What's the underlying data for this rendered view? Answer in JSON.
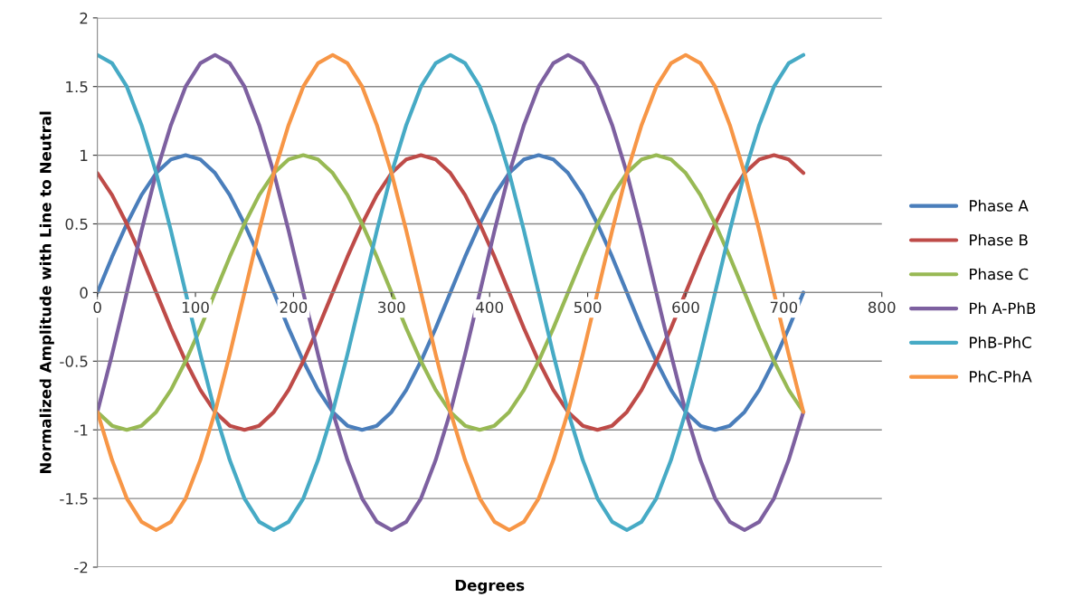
{
  "chart_data": {
    "type": "line",
    "xlabel": "Degrees",
    "ylabel": "Normalized Amplitude with Line to Neutral",
    "x": [
      0,
      15,
      30,
      45,
      60,
      75,
      90,
      105,
      120,
      135,
      150,
      165,
      180,
      195,
      210,
      225,
      240,
      255,
      270,
      285,
      300,
      315,
      330,
      345,
      360,
      375,
      390,
      405,
      420,
      435,
      450,
      465,
      480,
      495,
      510,
      525,
      540,
      555,
      570,
      585,
      600,
      615,
      630,
      645,
      660,
      675,
      690,
      705,
      720
    ],
    "xlim": [
      0,
      800
    ],
    "xticks": [
      0,
      100,
      200,
      300,
      400,
      500,
      600,
      700,
      800
    ],
    "ylim": [
      -2,
      2
    ],
    "yticks": [
      -2,
      -1.5,
      -1,
      -0.5,
      0,
      0.5,
      1,
      1.5,
      2
    ],
    "grid": "y",
    "legend": "right",
    "marker": "none",
    "line_style": "solid",
    "series": [
      {
        "name": "Phase A",
        "color": "#4a7ebb",
        "values": [
          0,
          0.26,
          0.5,
          0.71,
          0.87,
          0.97,
          1,
          0.97,
          0.87,
          0.71,
          0.5,
          0.26,
          0,
          -0.26,
          -0.5,
          -0.71,
          -0.87,
          -0.97,
          -1,
          -0.97,
          -0.87,
          -0.71,
          -0.5,
          -0.26,
          0,
          0.26,
          0.5,
          0.71,
          0.87,
          0.97,
          1,
          0.97,
          0.87,
          0.71,
          0.5,
          0.26,
          0,
          -0.26,
          -0.5,
          -0.71,
          -0.87,
          -0.97,
          -1,
          -0.97,
          -0.87,
          -0.71,
          -0.5,
          -0.26,
          0
        ]
      },
      {
        "name": "Phase B",
        "color": "#be4b48",
        "values": [
          0.87,
          0.71,
          0.5,
          0.26,
          0,
          -0.26,
          -0.5,
          -0.71,
          -0.87,
          -0.97,
          -1,
          -0.97,
          -0.87,
          -0.71,
          -0.5,
          -0.26,
          0,
          0.26,
          0.5,
          0.71,
          0.87,
          0.97,
          1,
          0.97,
          0.87,
          0.71,
          0.5,
          0.26,
          0,
          -0.26,
          -0.5,
          -0.71,
          -0.87,
          -0.97,
          -1,
          -0.97,
          -0.87,
          -0.71,
          -0.5,
          -0.26,
          0,
          0.26,
          0.5,
          0.71,
          0.87,
          0.97,
          1,
          0.97,
          0.87
        ]
      },
      {
        "name": "Phase C",
        "color": "#98b954",
        "values": [
          -0.87,
          -0.97,
          -1,
          -0.97,
          -0.87,
          -0.71,
          -0.5,
          -0.26,
          0,
          0.26,
          0.5,
          0.71,
          0.87,
          0.97,
          1,
          0.97,
          0.87,
          0.71,
          0.5,
          0.26,
          0,
          -0.26,
          -0.5,
          -0.71,
          -0.87,
          -0.97,
          -1,
          -0.97,
          -0.87,
          -0.71,
          -0.5,
          -0.26,
          0,
          0.26,
          0.5,
          0.71,
          0.87,
          0.97,
          1,
          0.97,
          0.87,
          0.71,
          0.5,
          0.26,
          0,
          -0.26,
          -0.5,
          -0.71,
          -0.87
        ]
      },
      {
        "name": "Ph A-PhB",
        "color": "#7d60a0",
        "values": [
          -0.87,
          -0.45,
          0,
          0.45,
          0.87,
          1.22,
          1.5,
          1.67,
          1.73,
          1.67,
          1.5,
          1.22,
          0.87,
          0.45,
          0,
          -0.45,
          -0.87,
          -1.22,
          -1.5,
          -1.67,
          -1.73,
          -1.67,
          -1.5,
          -1.22,
          -0.87,
          -0.45,
          0,
          0.45,
          0.87,
          1.22,
          1.5,
          1.67,
          1.73,
          1.67,
          1.5,
          1.22,
          0.87,
          0.45,
          0,
          -0.45,
          -0.87,
          -1.22,
          -1.5,
          -1.67,
          -1.73,
          -1.67,
          -1.5,
          -1.22,
          -0.87
        ]
      },
      {
        "name": "PhB-PhC",
        "color": "#46aac5",
        "values": [
          1.73,
          1.67,
          1.5,
          1.22,
          0.87,
          0.45,
          0,
          -0.45,
          -0.87,
          -1.22,
          -1.5,
          -1.67,
          -1.73,
          -1.67,
          -1.5,
          -1.22,
          -0.87,
          -0.45,
          0,
          0.45,
          0.87,
          1.22,
          1.5,
          1.67,
          1.73,
          1.67,
          1.5,
          1.22,
          0.87,
          0.45,
          0,
          -0.45,
          -0.87,
          -1.22,
          -1.5,
          -1.67,
          -1.73,
          -1.67,
          -1.5,
          -1.22,
          -0.87,
          -0.45,
          0,
          0.45,
          0.87,
          1.22,
          1.5,
          1.67,
          1.73
        ]
      },
      {
        "name": "PhC-PhA",
        "color": "#f79646",
        "values": [
          -0.87,
          -1.22,
          -1.5,
          -1.67,
          -1.73,
          -1.67,
          -1.5,
          -1.22,
          -0.87,
          -0.45,
          0,
          0.45,
          0.87,
          1.22,
          1.5,
          1.67,
          1.73,
          1.67,
          1.5,
          1.22,
          0.87,
          0.45,
          0,
          -0.45,
          -0.87,
          -1.22,
          -1.5,
          -1.67,
          -1.73,
          -1.67,
          -1.5,
          -1.22,
          -0.87,
          -0.45,
          0,
          0.45,
          0.87,
          1.22,
          1.5,
          1.67,
          1.73,
          1.67,
          1.5,
          1.22,
          0.87,
          0.45,
          0,
          -0.45,
          -0.87
        ]
      }
    ]
  }
}
